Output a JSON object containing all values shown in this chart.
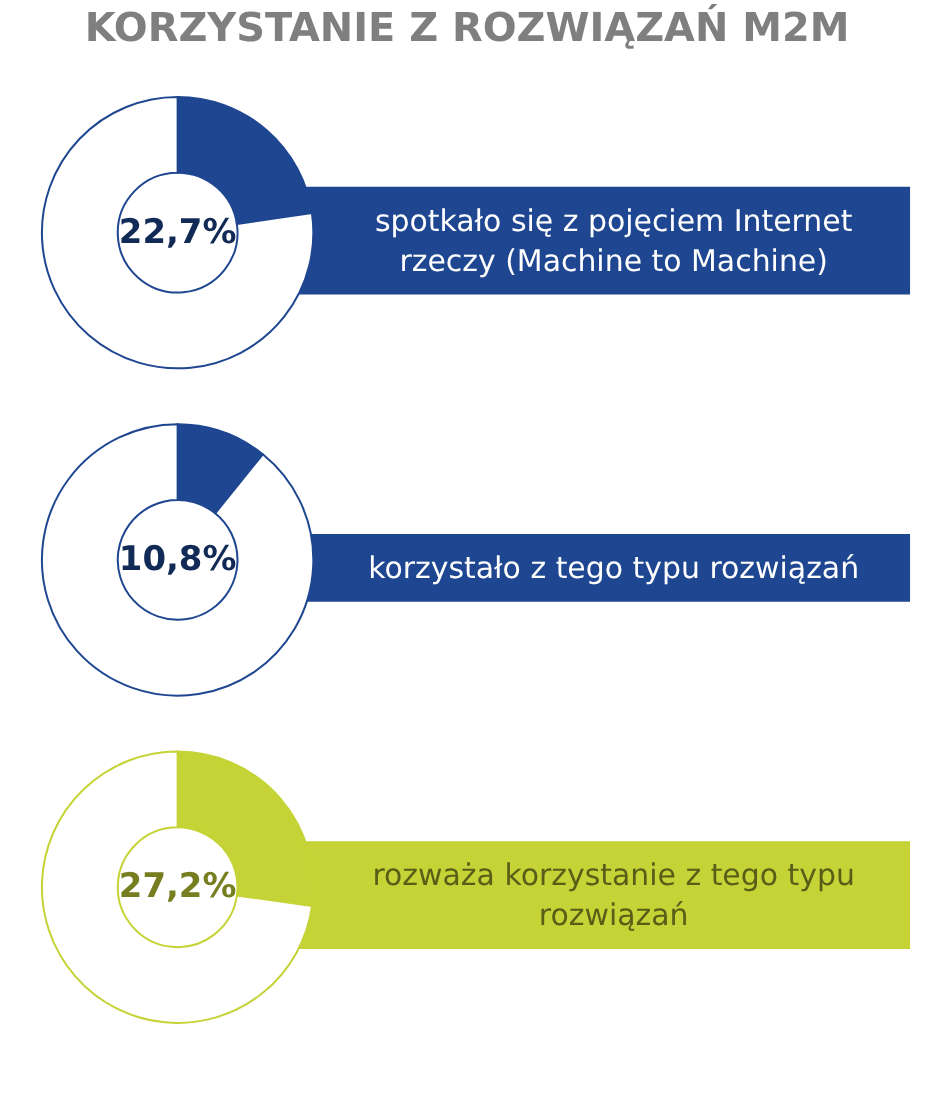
{
  "chart_data": [
    {
      "type": "donut",
      "title": "KORZYSTANIE Z ROZWIĄZAŃ M2M",
      "categories": [
        null,
        null
      ],
      "values": [
        22.7,
        77.3
      ],
      "colors": [
        "#1f4690",
        "#ffffff"
      ],
      "value_labels": [
        "22,7%",
        null
      ],
      "annotations": [
        "spotkało się z pojęciem Internet rzeczy (Machine to Machine)"
      ]
    },
    {
      "type": "donut",
      "categories": [
        null,
        null
      ],
      "values": [
        10.8,
        89.2
      ],
      "colors": [
        "#1f4690",
        "#ffffff"
      ],
      "value_labels": [
        "10,8%",
        null
      ],
      "annotations": [
        "korzystało z tego typu rozwiązań"
      ]
    },
    {
      "type": "donut",
      "categories": [
        null,
        null
      ],
      "values": [
        27.2,
        72.8
      ],
      "colors": [
        "#c5d336",
        "#ffffff"
      ],
      "value_labels": [
        "27,2%",
        null
      ],
      "annotations": [
        "rozważa korzystanie z tego typu rozwiązań"
      ]
    }
  ]
}
